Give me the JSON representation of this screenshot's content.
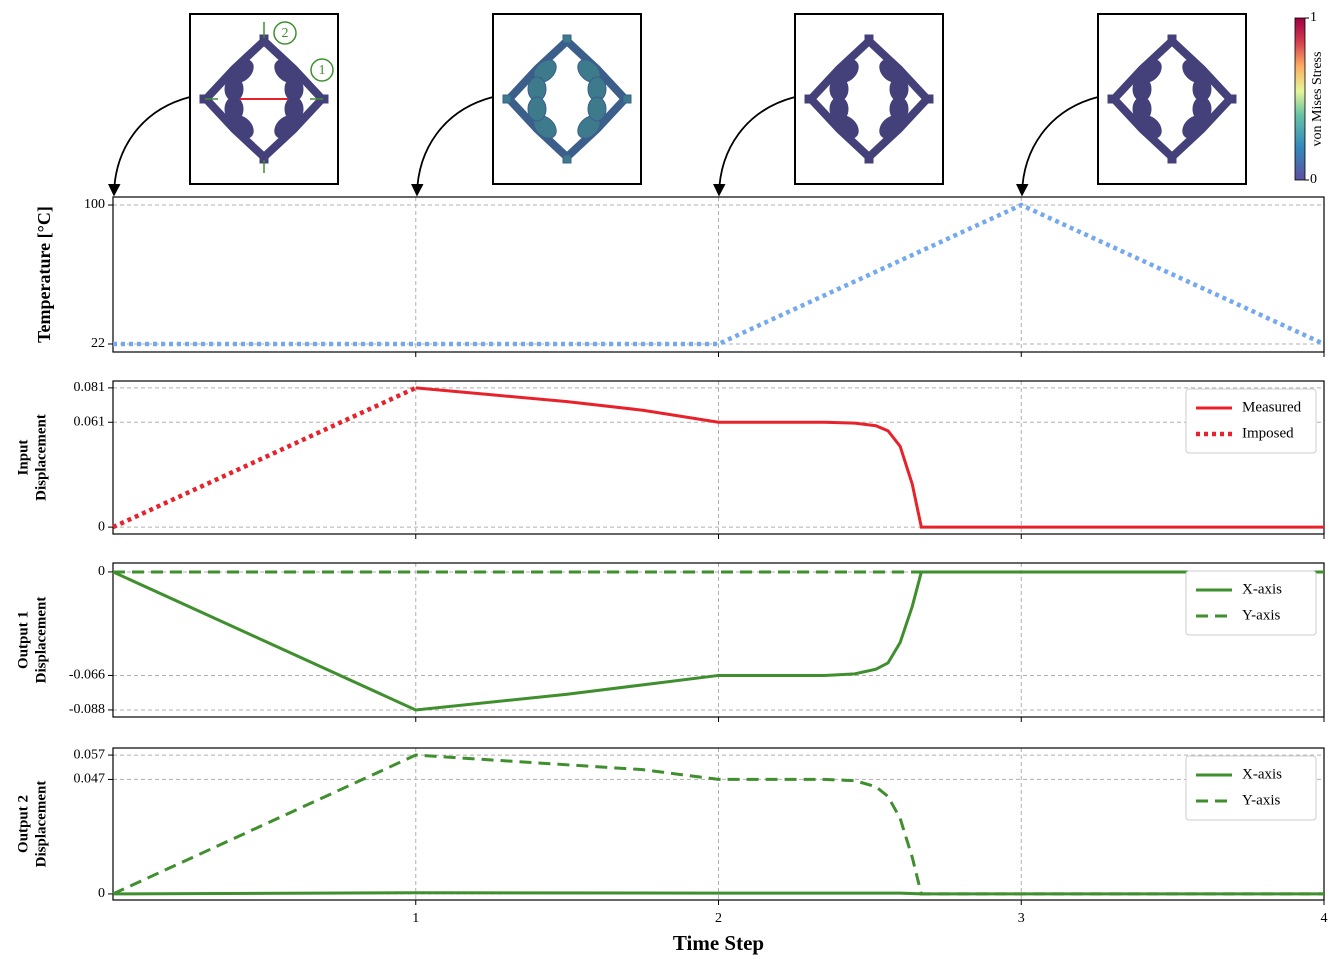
{
  "chart_data": [
    {
      "type": "line",
      "ylabel": [
        "Temperature [°C]"
      ],
      "xlim": [
        0,
        4
      ],
      "xticks": [
        1,
        2,
        3,
        4
      ],
      "ylim": [
        17.5,
        104.5
      ],
      "yticks": [
        22,
        100
      ],
      "grid": true,
      "series": [
        {
          "color": "#74a9f0",
          "style": "dotted",
          "x": [
            0,
            1,
            2,
            3,
            4
          ],
          "values": [
            22,
            22,
            22,
            100,
            22
          ]
        }
      ]
    },
    {
      "type": "line",
      "ylabel": [
        "Input",
        "Displacement"
      ],
      "xlim": [
        0,
        4
      ],
      "xticks": [
        1,
        2,
        3,
        4
      ],
      "ylim": [
        -0.004,
        0.085
      ],
      "yticks": [
        0,
        0.061,
        0.081
      ],
      "grid": true,
      "legend": "upper right",
      "series": [
        {
          "name": "Measured",
          "color": "#e8222a",
          "style": "solid",
          "x": [
            1,
            1.25,
            1.5,
            1.75,
            2,
            2.2,
            2.35,
            2.45,
            2.52,
            2.56,
            2.6,
            2.64,
            2.67,
            3,
            4
          ],
          "values": [
            0.081,
            0.077,
            0.073,
            0.068,
            0.061,
            0.061,
            0.061,
            0.0605,
            0.059,
            0.056,
            0.047,
            0.025,
            0,
            0,
            0
          ]
        },
        {
          "name": "Imposed",
          "color": "#e8222a",
          "style": "dotted",
          "x": [
            0,
            1
          ],
          "values": [
            0,
            0.081
          ]
        }
      ]
    },
    {
      "type": "line",
      "ylabel": [
        "Output 1",
        "Displacement"
      ],
      "xlim": [
        0,
        4
      ],
      "xticks": [
        1,
        2,
        3,
        4
      ],
      "ylim": [
        -0.0925,
        0.0057
      ],
      "yticks": [
        -0.088,
        -0.066,
        0
      ],
      "grid": true,
      "legend": "upper right",
      "series": [
        {
          "name": "X-axis",
          "color": "#3f8f2e",
          "style": "solid",
          "x": [
            0,
            1,
            1.5,
            1.75,
            2,
            2.35,
            2.45,
            2.52,
            2.56,
            2.6,
            2.64,
            2.67,
            4
          ],
          "values": [
            0,
            -0.088,
            -0.078,
            -0.072,
            -0.066,
            -0.066,
            -0.065,
            -0.062,
            -0.058,
            -0.045,
            -0.022,
            0,
            0
          ]
        },
        {
          "name": "Y-axis",
          "color": "#3f8f2e",
          "style": "dashed",
          "x": [
            0,
            4
          ],
          "values": [
            0,
            0
          ]
        }
      ]
    },
    {
      "type": "line",
      "ylabel": [
        "Output 2",
        "Displacement"
      ],
      "xlabel": "Time Step",
      "xlim": [
        0,
        4
      ],
      "xticks": [
        1,
        2,
        3,
        4
      ],
      "ylim": [
        -0.0025,
        0.0599
      ],
      "yticks": [
        0,
        0.047,
        0.057
      ],
      "grid": true,
      "legend": "upper right",
      "series": [
        {
          "name": "X-axis",
          "color": "#3f8f2e",
          "style": "solid",
          "x": [
            0,
            1,
            2,
            2.6,
            2.67,
            4
          ],
          "values": [
            0,
            0.0005,
            0.0003,
            0.0003,
            0,
            0
          ]
        },
        {
          "name": "Y-axis",
          "color": "#3f8f2e",
          "style": "dashed",
          "x": [
            0,
            1,
            1.5,
            1.75,
            2,
            2.35,
            2.45,
            2.52,
            2.56,
            2.6,
            2.64,
            2.67,
            4
          ],
          "values": [
            0,
            0.057,
            0.053,
            0.051,
            0.047,
            0.047,
            0.0465,
            0.044,
            0.04,
            0.031,
            0.015,
            0,
            0
          ]
        }
      ]
    }
  ],
  "colorbar": {
    "label": "von Mises Stress",
    "lim": [
      0,
      1
    ],
    "ticks": [
      0,
      1
    ]
  },
  "inset_labels": [
    "1",
    "2"
  ]
}
